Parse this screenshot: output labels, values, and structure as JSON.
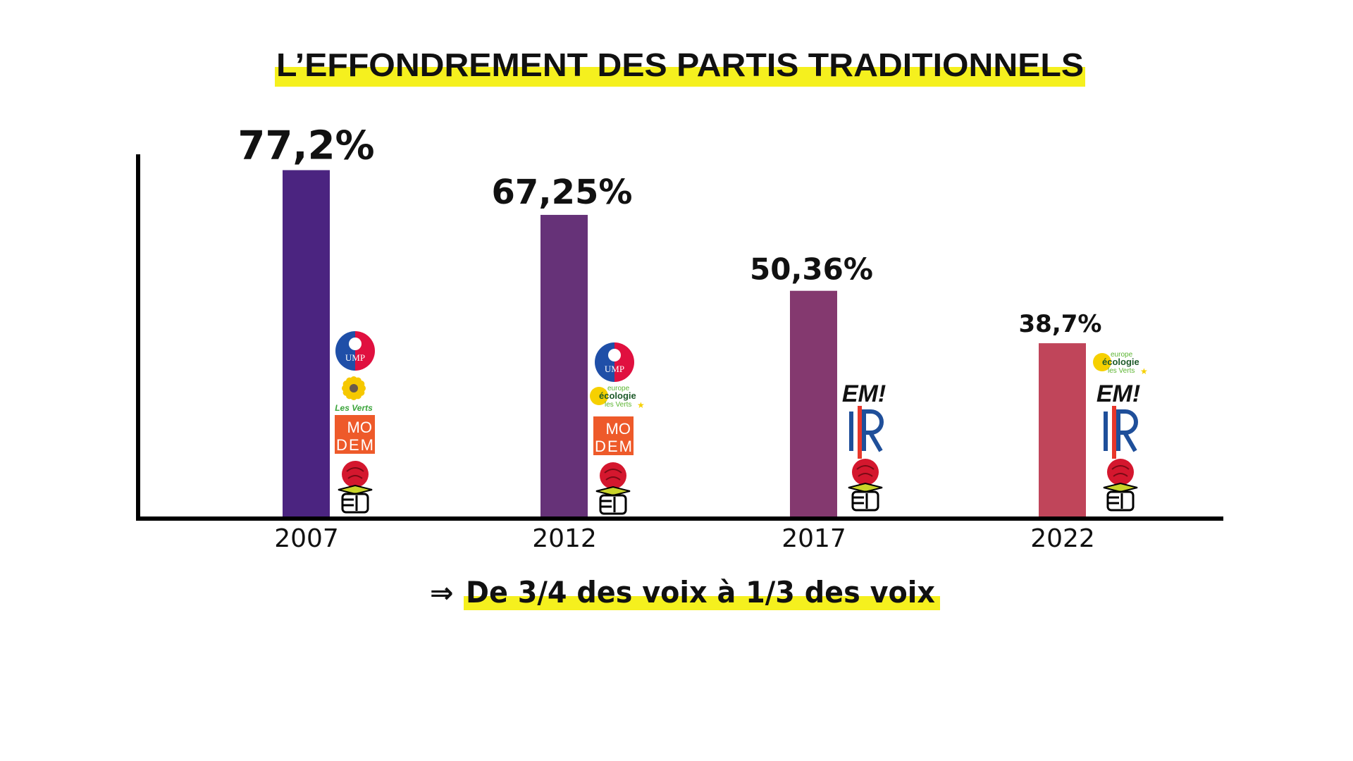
{
  "chart_data": {
    "type": "bar",
    "title": "L’EFFONDREMENT DES PARTIS TRADITIONNELS",
    "xlabel": "",
    "ylabel": "",
    "ylim": [
      0,
      80
    ],
    "grid": false,
    "categories": [
      "2007",
      "2012",
      "2017",
      "2022"
    ],
    "values": [
      77.2,
      67.25,
      50.36,
      38.7
    ],
    "value_labels": [
      "77,2%",
      "67,25%",
      "50,36%",
      "38,7%"
    ],
    "bar_colors": [
      "#4b2480",
      "#663278",
      "#84396f",
      "#c0455a"
    ],
    "parties": [
      [
        "UMP",
        "Les Verts",
        "MoDem",
        "PS"
      ],
      [
        "UMP",
        "Europe Écologie Les Verts",
        "MoDem",
        "PS"
      ],
      [
        "EM!",
        "LR",
        "PS"
      ],
      [
        "Europe Écologie Les Verts",
        "EM!",
        "LR",
        "PS"
      ]
    ],
    "annotation": "De 3/4 des voix à 1/3 des voix",
    "annotation_arrow": "⇒"
  },
  "highlight_color": "#f5f01e",
  "logo_text": {
    "ump": "UMP",
    "les_verts": "Les Verts",
    "modem_1": "MO",
    "modem_2": "DEM",
    "eelv_1": "europe",
    "eelv_2": "écologie",
    "eelv_3": "les Verts",
    "em": "EM!"
  }
}
